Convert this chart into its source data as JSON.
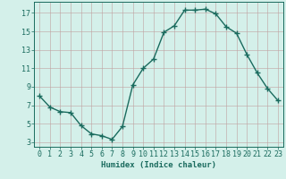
{
  "x": [
    0,
    1,
    2,
    3,
    4,
    5,
    6,
    7,
    8,
    9,
    10,
    11,
    12,
    13,
    14,
    15,
    16,
    17,
    18,
    19,
    20,
    21,
    22,
    23
  ],
  "y": [
    8.0,
    6.8,
    6.3,
    6.2,
    4.8,
    3.9,
    3.7,
    3.3,
    4.7,
    9.2,
    11.0,
    12.0,
    14.9,
    15.6,
    17.3,
    17.3,
    17.4,
    16.9,
    15.5,
    14.8,
    12.5,
    10.5,
    8.8,
    7.5
  ],
  "line_color": "#1a6b5e",
  "marker": "+",
  "marker_size": 4,
  "bg_color": "#d4f0ea",
  "grid_color": "#c0a0a0",
  "xlabel": "Humidex (Indice chaleur)",
  "xlim": [
    -0.5,
    23.5
  ],
  "ylim": [
    2.5,
    18.2
  ],
  "yticks": [
    3,
    5,
    7,
    9,
    11,
    13,
    15,
    17
  ],
  "xticks": [
    0,
    1,
    2,
    3,
    4,
    5,
    6,
    7,
    8,
    9,
    10,
    11,
    12,
    13,
    14,
    15,
    16,
    17,
    18,
    19,
    20,
    21,
    22,
    23
  ],
  "xlabel_fontsize": 6.5,
  "tick_fontsize": 6.0,
  "line_width": 1.0
}
